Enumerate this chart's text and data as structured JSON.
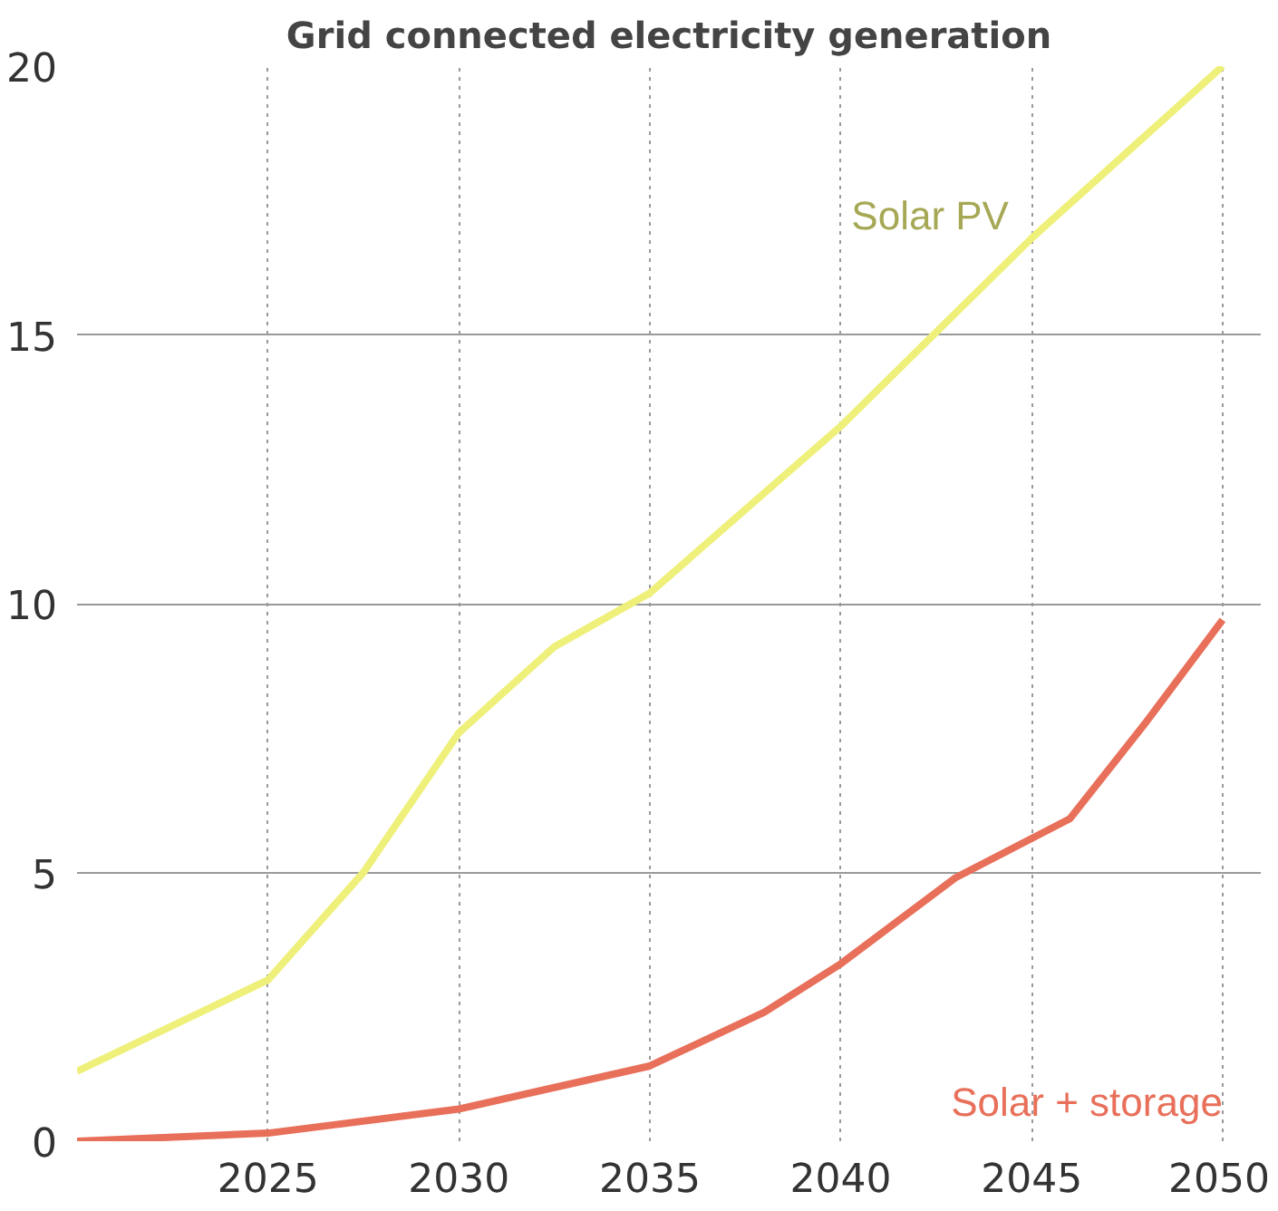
{
  "chart_data": {
    "type": "line",
    "title": "Grid connected electricity generation",
    "xlim": [
      2020,
      2051
    ],
    "xticks": [
      2025,
      2030,
      2035,
      2040,
      2045,
      2050
    ],
    "ylim": [
      0,
      20
    ],
    "yticks": [
      0,
      5,
      10,
      15,
      20
    ],
    "grid": true,
    "series": [
      {
        "name": "Solar PV",
        "color": "#eef07a",
        "x": [
          2020,
          2025,
          2027.5,
          2030,
          2032.5,
          2035,
          2040,
          2045,
          2050
        ],
        "values": [
          1.3,
          3.0,
          5.0,
          7.6,
          9.2,
          10.2,
          13.3,
          16.8,
          20
        ]
      },
      {
        "name": "Solar + storage",
        "color": "#e8705a",
        "x": [
          2020,
          2025,
          2030,
          2035,
          2038,
          2040,
          2043,
          2046,
          2048,
          2050
        ],
        "values": [
          0,
          0.15,
          0.6,
          1.4,
          2.4,
          3.3,
          4.9,
          6.0,
          7.8,
          9.7
        ]
      }
    ]
  }
}
